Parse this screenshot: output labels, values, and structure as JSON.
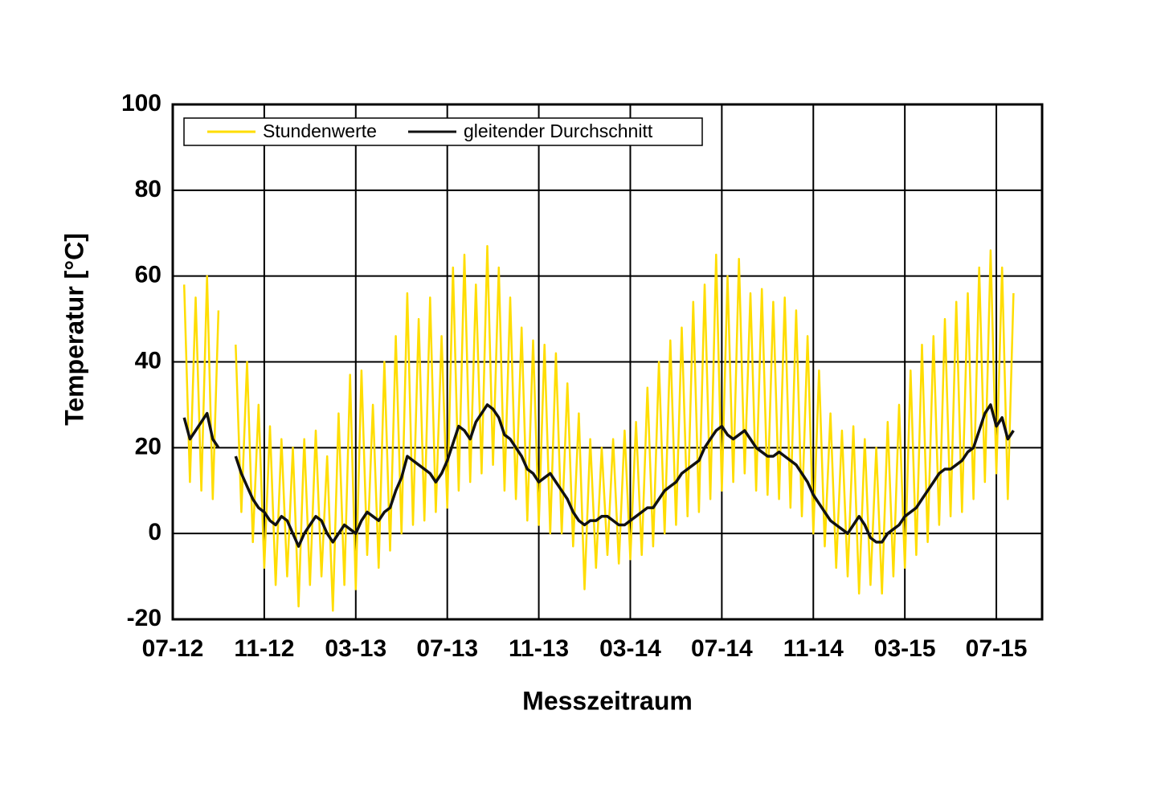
{
  "chart_data": {
    "type": "line",
    "x_label": "Messzeitraum",
    "y_label": "Temperatur [°C]",
    "x": [
      0.5,
      0.75,
      1,
      1.25,
      1.5,
      1.75,
      2,
      2.25,
      2.5,
      2.75,
      3,
      3.25,
      3.5,
      3.75,
      4,
      4.25,
      4.5,
      4.75,
      5,
      5.25,
      5.5,
      5.75,
      6,
      6.25,
      6.5,
      6.75,
      7,
      7.25,
      7.5,
      7.75,
      8,
      8.25,
      8.5,
      8.75,
      9,
      9.25,
      9.5,
      9.75,
      10,
      10.25,
      10.5,
      10.75,
      11,
      11.25,
      11.5,
      11.75,
      12,
      12.25,
      12.5,
      12.75,
      13,
      13.25,
      13.5,
      13.75,
      14,
      14.25,
      14.5,
      14.75,
      15,
      15.25,
      15.5,
      15.75,
      16,
      16.25,
      16.5,
      16.75,
      17,
      17.25,
      17.5,
      17.75,
      18,
      18.25,
      18.5,
      18.75,
      19,
      19.25,
      19.5,
      19.75,
      20,
      20.25,
      20.5,
      20.75,
      21,
      21.25,
      21.5,
      21.75,
      22,
      22.25,
      22.5,
      22.75,
      23,
      23.25,
      23.5,
      23.75,
      24,
      24.25,
      24.5,
      24.75,
      25,
      25.25,
      25.5,
      25.75,
      26,
      26.25,
      26.5,
      26.75,
      27,
      27.25,
      27.5,
      27.75,
      28,
      28.25,
      28.5,
      28.75,
      29,
      29.25,
      29.5,
      29.75,
      30,
      30.25,
      30.5,
      30.75,
      31,
      31.25,
      31.5,
      31.75,
      32,
      32.25,
      32.5,
      32.75,
      33,
      33.25,
      33.5,
      33.75,
      34,
      34.25,
      34.5,
      34.75,
      35,
      35.25,
      35.5,
      35.75,
      36,
      36.25,
      36.5,
      36.75
    ],
    "series": [
      {
        "name": "Stundenwerte",
        "color": "#ffdd00",
        "values": [
          58,
          12,
          55,
          10,
          60,
          8,
          52,
          null,
          null,
          44,
          5,
          40,
          -2,
          30,
          -8,
          25,
          -12,
          22,
          -10,
          20,
          -17,
          22,
          -12,
          24,
          -10,
          18,
          -18,
          28,
          -12,
          37,
          -13,
          38,
          -5,
          30,
          -8,
          40,
          -4,
          46,
          0,
          56,
          2,
          50,
          3,
          55,
          5,
          46,
          6,
          62,
          10,
          65,
          12,
          58,
          14,
          67,
          16,
          62,
          10,
          55,
          8,
          48,
          3,
          45,
          2,
          44,
          0,
          42,
          0,
          35,
          -3,
          28,
          -13,
          22,
          -8,
          20,
          -5,
          22,
          -7,
          24,
          -6,
          26,
          -5,
          34,
          -3,
          40,
          0,
          45,
          2,
          48,
          4,
          54,
          5,
          58,
          8,
          65,
          10,
          60,
          12,
          64,
          14,
          56,
          10,
          57,
          9,
          54,
          8,
          55,
          6,
          52,
          4,
          46,
          0,
          38,
          -3,
          28,
          -8,
          24,
          -10,
          25,
          -14,
          22,
          -12,
          20,
          -14,
          26,
          -10,
          30,
          -8,
          38,
          -5,
          44,
          -2,
          46,
          2,
          50,
          4,
          54,
          5,
          56,
          8,
          62,
          12,
          66,
          14,
          62,
          8,
          56
        ]
      },
      {
        "name": "gleitender Durchschnitt",
        "color": "#111111",
        "values": [
          27,
          22,
          24,
          26,
          28,
          22,
          20,
          null,
          null,
          18,
          14,
          11,
          8,
          6,
          5,
          3,
          2,
          4,
          3,
          0,
          -3,
          0,
          2,
          4,
          3,
          0,
          -2,
          0,
          2,
          1,
          0,
          3,
          5,
          4,
          3,
          5,
          6,
          10,
          13,
          18,
          17,
          16,
          15,
          14,
          12,
          14,
          17,
          21,
          25,
          24,
          22,
          26,
          28,
          30,
          29,
          27,
          23,
          22,
          20,
          18,
          15,
          14,
          12,
          13,
          14,
          12,
          10,
          8,
          5,
          3,
          2,
          3,
          3,
          4,
          4,
          3,
          2,
          2,
          3,
          4,
          5,
          6,
          6,
          8,
          10,
          11,
          12,
          14,
          15,
          16,
          17,
          20,
          22,
          24,
          25,
          23,
          22,
          23,
          24,
          22,
          20,
          19,
          18,
          18,
          19,
          18,
          17,
          16,
          14,
          12,
          9,
          7,
          5,
          3,
          2,
          1,
          0,
          2,
          4,
          2,
          -1,
          -2,
          -2,
          0,
          1,
          2,
          4,
          5,
          6,
          8,
          10,
          12,
          14,
          15,
          15,
          16,
          17,
          19,
          20,
          24,
          28,
          30,
          25,
          27,
          22,
          24
        ]
      }
    ],
    "xlim": [
      0,
      38
    ],
    "xticks": [
      {
        "value": 0,
        "label": "07-12"
      },
      {
        "value": 4,
        "label": "11-12"
      },
      {
        "value": 8,
        "label": "03-13"
      },
      {
        "value": 12,
        "label": "07-13"
      },
      {
        "value": 16,
        "label": "11-13"
      },
      {
        "value": 20,
        "label": "03-14"
      },
      {
        "value": 24,
        "label": "07-14"
      },
      {
        "value": 28,
        "label": "11-14"
      },
      {
        "value": 32,
        "label": "03-15"
      },
      {
        "value": 36,
        "label": "07-15"
      }
    ],
    "ylim": [
      -20,
      100
    ],
    "yticks": [
      -20,
      0,
      20,
      40,
      60,
      80,
      100
    ],
    "grid": true,
    "legend": "upper left"
  }
}
